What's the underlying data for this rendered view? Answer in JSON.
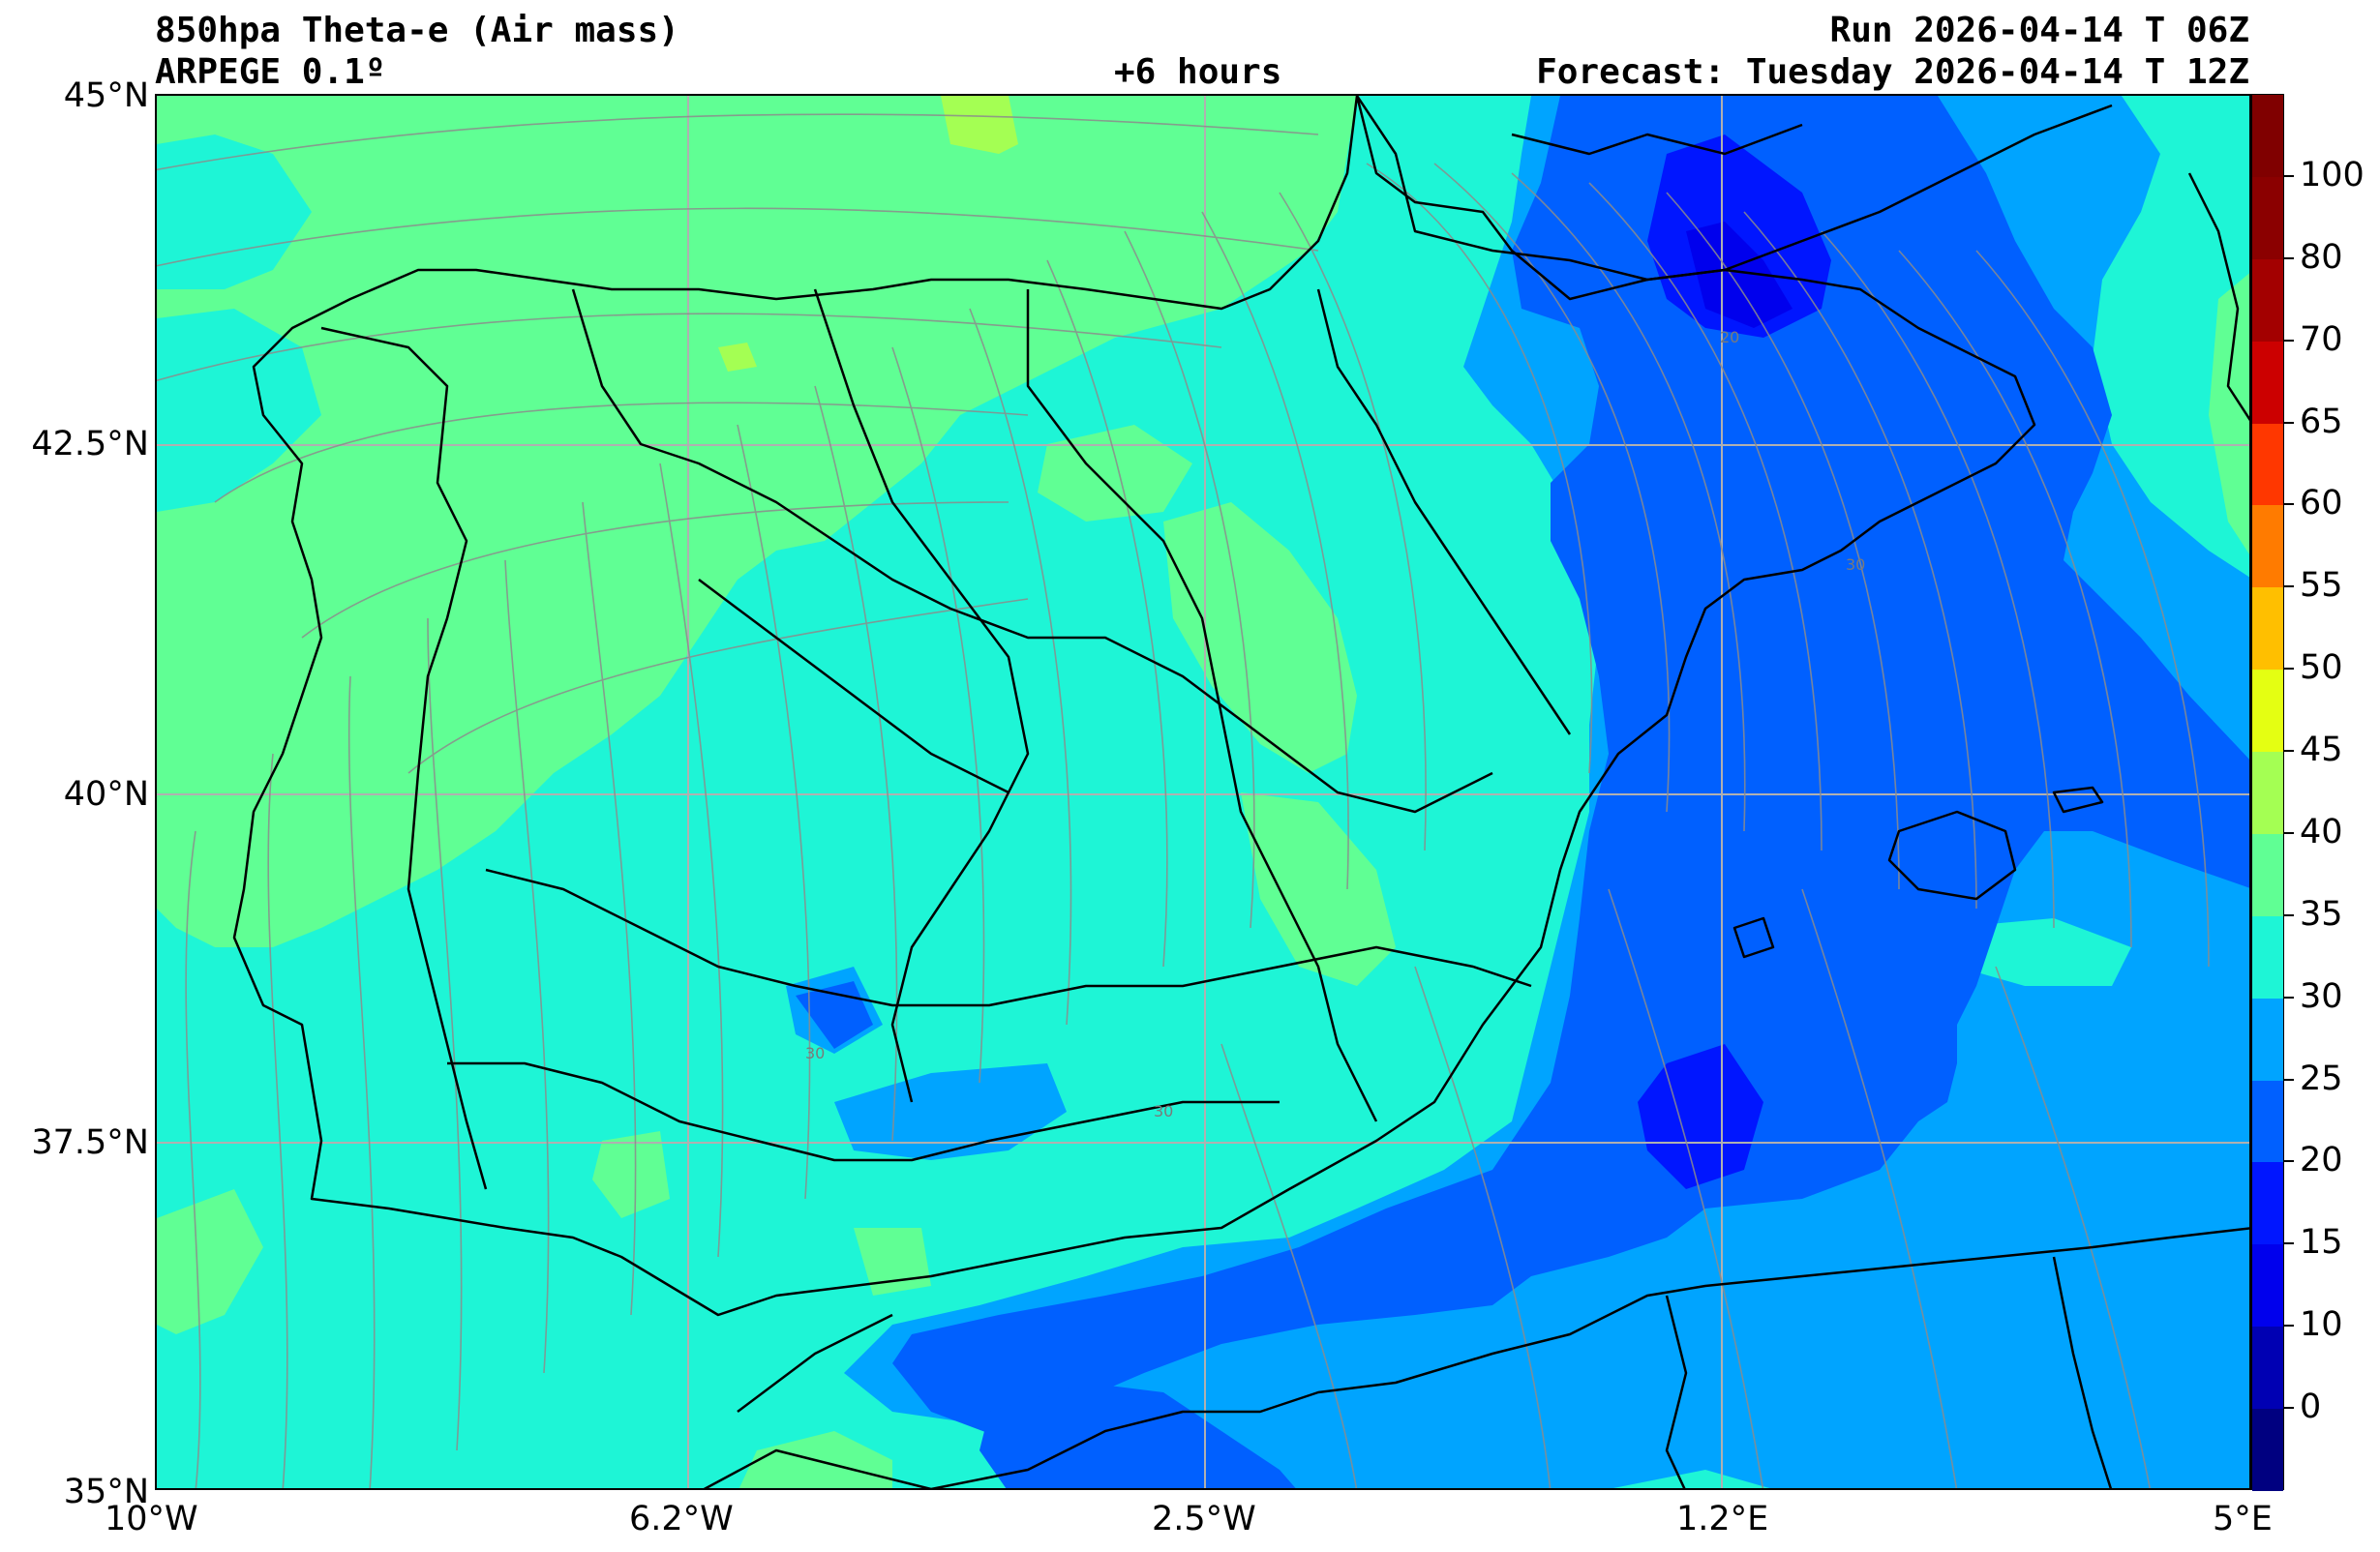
{
  "header": {
    "title": "850hpa Theta-e (Air mass)",
    "model": "ARPEGE 0.1º",
    "lead": "+6 hours",
    "run": "Run 2026-04-14 T 06Z",
    "forecast": "Forecast: Tuesday 2026-04-14 T 12Z"
  },
  "axes": {
    "lat_labels": [
      "45°N",
      "42.5°N",
      "40°N",
      "37.5°N",
      "35°N"
    ],
    "lon_labels": [
      "10°W",
      "6.2°W",
      "2.5°W",
      "1.2°E",
      "5°E"
    ]
  },
  "map": {
    "extent": {
      "lon": [
        -10,
        5
      ],
      "lat": [
        35,
        45
      ]
    },
    "fill_type": "filled contours of 850 hPa equivalent potential temperature with streamlines",
    "dominant_value_range": "30–35",
    "contour_labels": [
      "20",
      "30",
      "30",
      "30"
    ]
  },
  "colorbar": {
    "levels": [
      -5,
      0,
      10,
      15,
      20,
      25,
      30,
      35,
      40,
      45,
      50,
      55,
      60,
      65,
      70,
      80,
      100,
      110
    ],
    "tick_labels": [
      "0",
      "10",
      "15",
      "20",
      "25",
      "30",
      "35",
      "40",
      "45",
      "50",
      "55",
      "60",
      "65",
      "70",
      "80",
      "100"
    ],
    "colors": [
      "#000080",
      "#0000b3",
      "#0000ed",
      "#0016ff",
      "#0060ff",
      "#00a4ff",
      "#1ef5d6",
      "#60ff94",
      "#a4ff53",
      "#e4ff12",
      "#ffbf00",
      "#ff7b00",
      "#ff3700",
      "#cc0000",
      "#a30000",
      "#8b0000",
      "#800000"
    ]
  },
  "palette": {
    "c20": "#0016ff",
    "c25": "#0060ff",
    "c30": "#00a4ff",
    "c35": "#1ef5d6",
    "c40": "#60ff94",
    "c45": "#a4ff53"
  }
}
